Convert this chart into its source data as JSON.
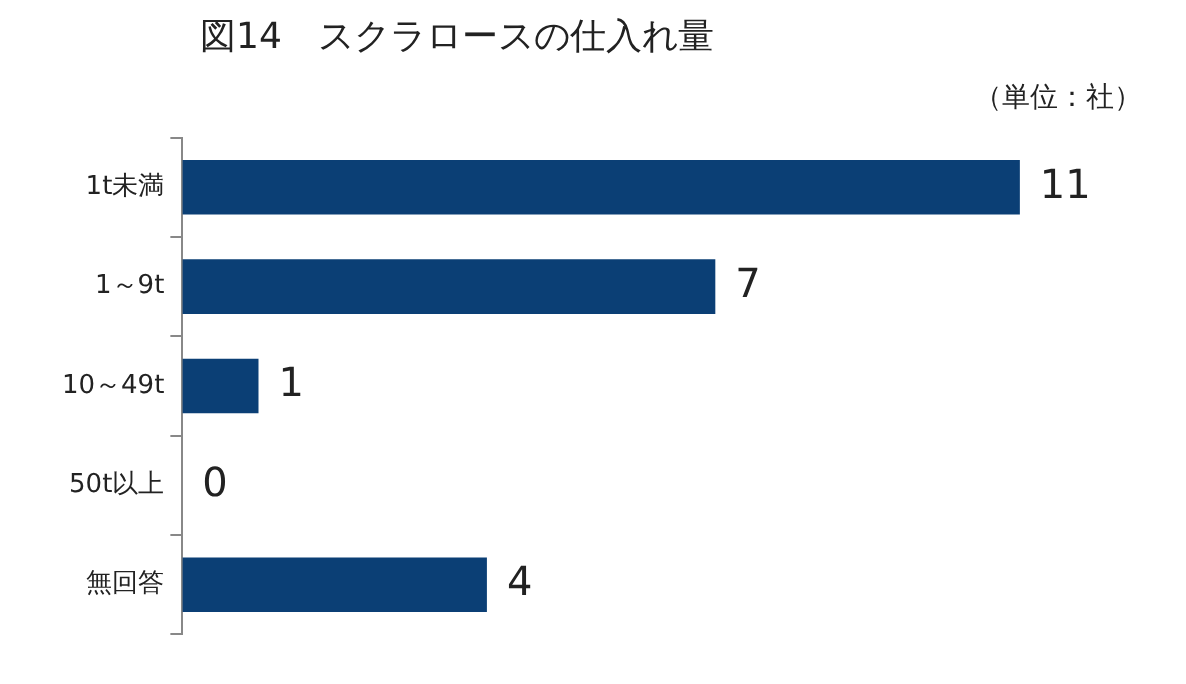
{
  "chart_data": {
    "type": "bar",
    "orientation": "horizontal",
    "title": "図14　スクラロースの仕入れ量",
    "annotations": [
      "（単位：社）"
    ],
    "categories": [
      "1t未満",
      "1～9t",
      "10～49t",
      "50t以上",
      "無回答"
    ],
    "values": [
      11,
      7,
      1,
      0,
      4
    ],
    "color": "#0b3f75",
    "data_labels": true
  }
}
